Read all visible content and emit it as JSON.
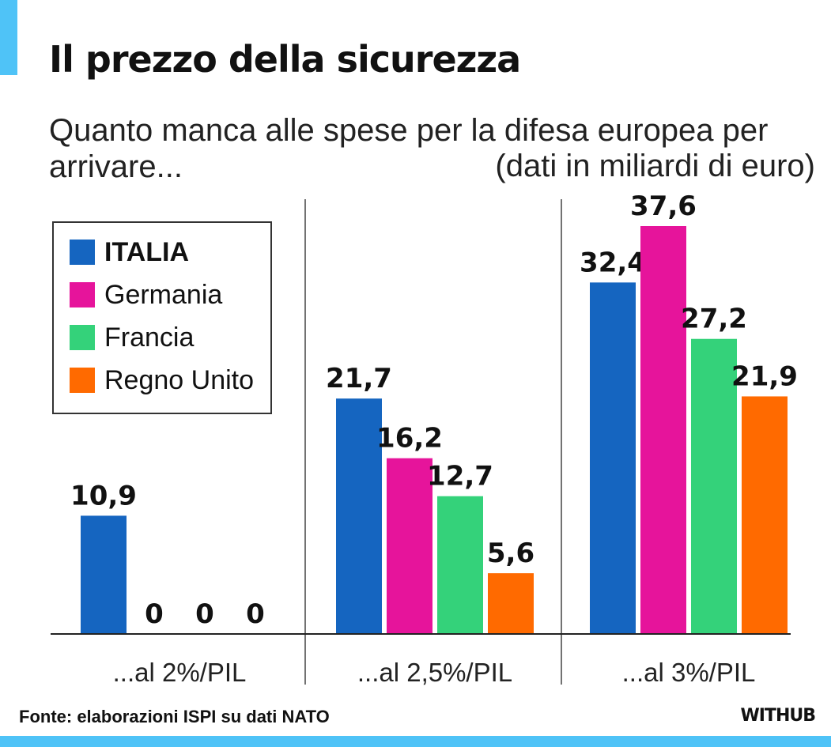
{
  "title": "Il prezzo della sicurezza",
  "subtitle": "Quanto manca alle spese per la difesa europea per arrivare...",
  "note": "(dati in miliardi di euro)",
  "source": "Fonte: elaborazioni ISPI su dati NATO",
  "brand": "WITHUB",
  "colors": {
    "accent": "#4fc3f7",
    "italia": "#1565c0",
    "germania": "#e6149b",
    "francia": "#34d27a",
    "regno_unito": "#ff6a00"
  },
  "chart_data": {
    "type": "bar",
    "categories": [
      "...al 2%/PIL",
      "...al 2,5%/PIL",
      "...al 3%/PIL"
    ],
    "series": [
      {
        "name": "ITALIA",
        "color": "#1565c0",
        "values": [
          10.9,
          21.7,
          32.4
        ],
        "labels": [
          "10,9",
          "21,7",
          "32,4"
        ]
      },
      {
        "name": "Germania",
        "color": "#e6149b",
        "values": [
          0,
          16.2,
          37.6
        ],
        "labels": [
          "0",
          "16,2",
          "37,6"
        ]
      },
      {
        "name": "Francia",
        "color": "#34d27a",
        "values": [
          0,
          12.7,
          27.2
        ],
        "labels": [
          "0",
          "12,7",
          "27,2"
        ]
      },
      {
        "name": "Regno Unito",
        "color": "#ff6a00",
        "values": [
          0,
          5.6,
          21.9
        ],
        "labels": [
          "0",
          "5,6",
          "21,9"
        ]
      }
    ],
    "ylim": [
      0,
      40
    ],
    "legend": "top-left",
    "grid": false
  }
}
